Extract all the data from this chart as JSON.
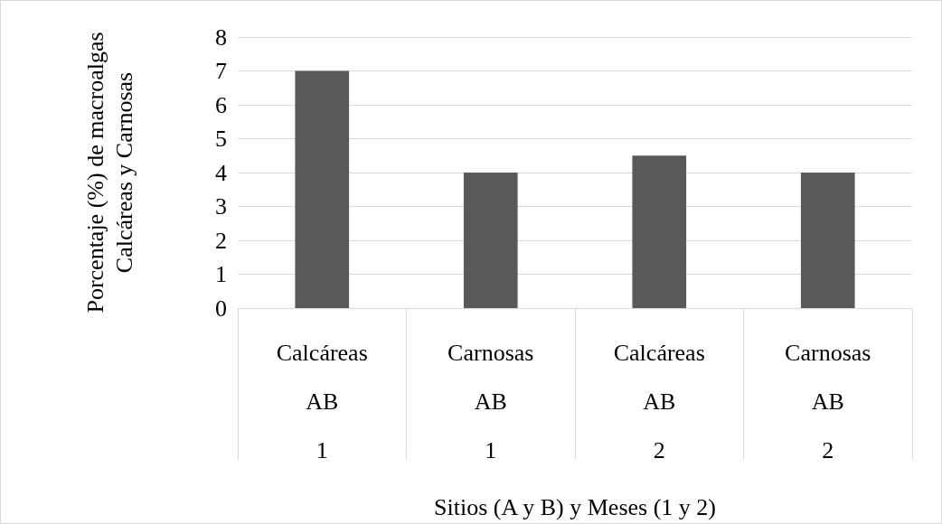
{
  "chart_data": {
    "type": "bar",
    "xlabel": "Sitios (A y B) y Meses (1 y 2)",
    "ylabel": "Porcentaje (%) de macroalgas\nCalcáreas y Carnosas",
    "categories": [
      "Calcáreas\nAB\n1",
      "Carnosas\nAB\n1",
      "Calcáreas\nAB\n2",
      "Carnosas\nAB\n2"
    ],
    "values": [
      7,
      4,
      4.5,
      4
    ],
    "color": "#595959",
    "ylim": [
      0,
      8
    ],
    "yticks": [
      0,
      1,
      2,
      3,
      4,
      5,
      6,
      7,
      8
    ],
    "grid": "y"
  }
}
